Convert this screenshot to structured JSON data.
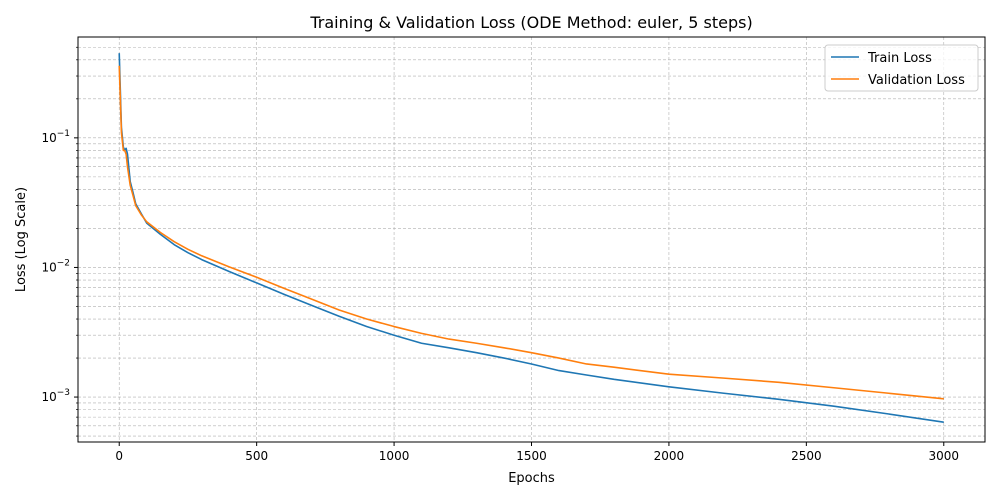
{
  "chart_data": {
    "type": "line",
    "title": "Training & Validation Loss (ODE Method: euler, 5 steps)",
    "xlabel": "Epochs",
    "ylabel": "Loss (Log Scale)",
    "yscale": "log",
    "xlim": [
      -150,
      3150
    ],
    "ylim": [
      0.00045,
      0.6
    ],
    "grid": true,
    "legend_position": "top-right",
    "xticks": [
      0,
      500,
      1000,
      1500,
      2000,
      2500,
      3000
    ],
    "xtick_labels": [
      "0",
      "500",
      "1000",
      "1500",
      "2000",
      "2500",
      "3000"
    ],
    "yticks": [
      0.001,
      0.01,
      0.1
    ],
    "ytick_labels": [
      {
        "base": "10",
        "exp": "−3"
      },
      {
        "base": "10",
        "exp": "−2"
      },
      {
        "base": "10",
        "exp": "−1"
      }
    ],
    "series": [
      {
        "name": "Train Loss",
        "color": "#1f77b4",
        "x": [
          0,
          8,
          15,
          20,
          25,
          30,
          40,
          50,
          60,
          80,
          100,
          150,
          200,
          250,
          300,
          400,
          500,
          600,
          700,
          800,
          900,
          1000,
          1100,
          1200,
          1300,
          1400,
          1500,
          1600,
          1700,
          1800,
          2000,
          2200,
          2400,
          2600,
          2800,
          3000
        ],
        "y": [
          0.45,
          0.12,
          0.085,
          0.08,
          0.083,
          0.075,
          0.046,
          0.038,
          0.031,
          0.026,
          0.022,
          0.018,
          0.015,
          0.013,
          0.0115,
          0.0093,
          0.0076,
          0.0062,
          0.0051,
          0.0042,
          0.0035,
          0.003,
          0.0026,
          0.0024,
          0.0022,
          0.002,
          0.0018,
          0.0016,
          0.00148,
          0.00137,
          0.0012,
          0.00107,
          0.00096,
          0.00085,
          0.00074,
          0.00064
        ]
      },
      {
        "name": "Validation Loss",
        "color": "#ff7f0e",
        "x": [
          0,
          8,
          15,
          20,
          25,
          30,
          40,
          50,
          60,
          80,
          100,
          150,
          200,
          250,
          300,
          400,
          500,
          600,
          700,
          800,
          900,
          1000,
          1100,
          1200,
          1300,
          1400,
          1500,
          1600,
          1700,
          1800,
          2000,
          2200,
          2400,
          2600,
          2800,
          3000
        ],
        "y": [
          0.36,
          0.11,
          0.08,
          0.08,
          0.075,
          0.06,
          0.043,
          0.036,
          0.03,
          0.0255,
          0.0225,
          0.0186,
          0.0158,
          0.0138,
          0.0123,
          0.0101,
          0.0084,
          0.0069,
          0.0057,
          0.0047,
          0.004,
          0.0035,
          0.0031,
          0.0028,
          0.0026,
          0.0024,
          0.0022,
          0.002,
          0.0018,
          0.0017,
          0.0015,
          0.0014,
          0.0013,
          0.00118,
          0.00107,
          0.00097
        ]
      }
    ]
  }
}
